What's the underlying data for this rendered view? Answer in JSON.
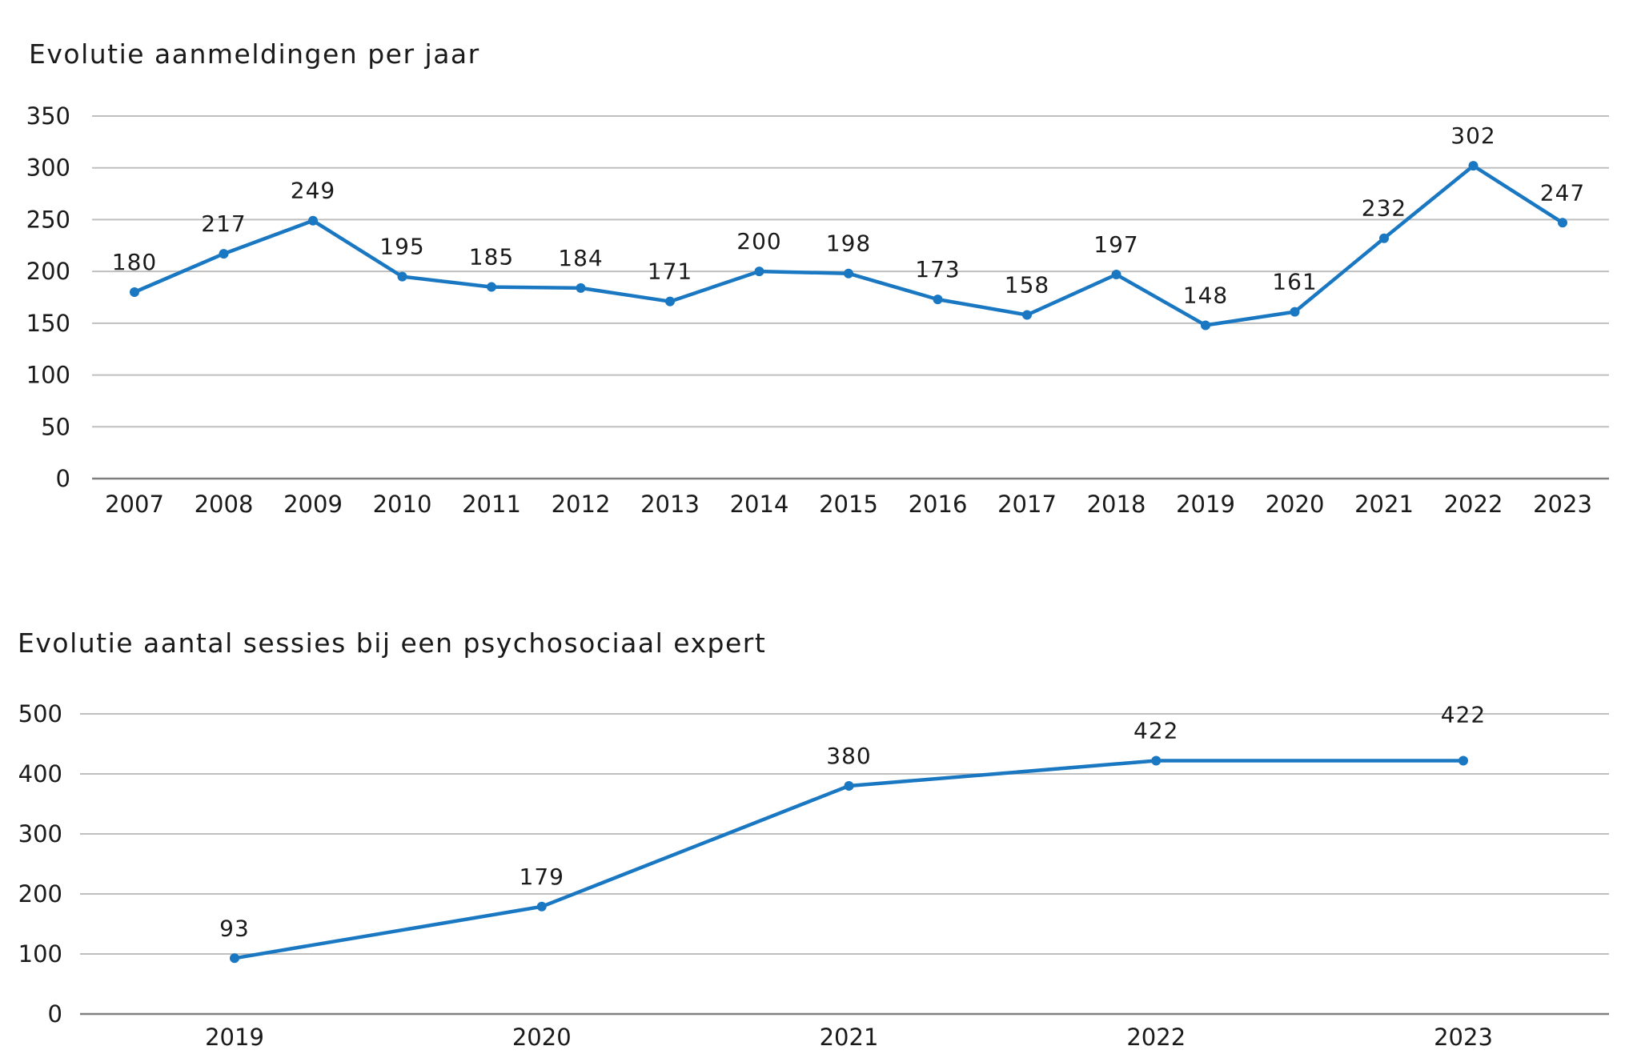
{
  "chart_data": [
    {
      "type": "line",
      "title": "Evolutie aanmeldingen per jaar",
      "categories": [
        "2007",
        "2008",
        "2009",
        "2010",
        "2011",
        "2012",
        "2013",
        "2014",
        "2015",
        "2016",
        "2017",
        "2018",
        "2019",
        "2020",
        "2021",
        "2022",
        "2023"
      ],
      "values": [
        180,
        217,
        249,
        195,
        185,
        184,
        171,
        200,
        198,
        173,
        158,
        197,
        148,
        161,
        232,
        302,
        247
      ],
      "ylim": [
        0,
        350
      ],
      "yticks": [
        0,
        50,
        100,
        150,
        200,
        250,
        300,
        350
      ],
      "xlabel": "",
      "ylabel": "",
      "grid": true,
      "color": "#1a78c2"
    },
    {
      "type": "line",
      "title": "Evolutie aantal sessies bij een psychosociaal expert",
      "categories": [
        "2019",
        "2020",
        "2021",
        "2022",
        "2023"
      ],
      "values": [
        93,
        179,
        380,
        422,
        422
      ],
      "ylim": [
        0,
        500
      ],
      "yticks": [
        0,
        100,
        200,
        300,
        400,
        500
      ],
      "xlabel": "",
      "ylabel": "",
      "grid": true,
      "color": "#1a78c2"
    }
  ]
}
